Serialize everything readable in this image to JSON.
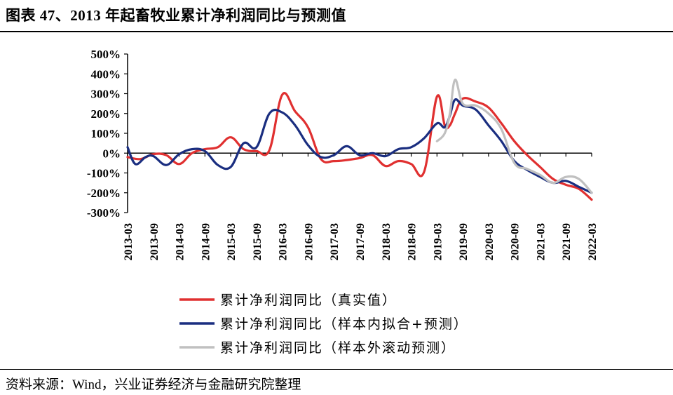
{
  "header": {
    "title": "图表 47、2013 年起畜牧业累计净利润同比与预测值"
  },
  "footer": {
    "source": "资料来源：Wind，兴业证券经济与金融研究院整理"
  },
  "chart_data": {
    "type": "line",
    "title": "",
    "xlabel": "",
    "ylabel": "",
    "ylim": [
      -300,
      500
    ],
    "yticks": [
      "500%",
      "400%",
      "300%",
      "200%",
      "100%",
      "0%",
      "-100%",
      "-200%",
      "-300%"
    ],
    "xticks": [
      "2013-03",
      "2013-09",
      "2014-03",
      "2014-09",
      "2015-03",
      "2015-09",
      "2016-03",
      "2016-09",
      "2017-03",
      "2017-09",
      "2018-03",
      "2018-09",
      "2019-03",
      "2019-09",
      "2020-03",
      "2020-09",
      "2021-03",
      "2021-09",
      "2022-03"
    ],
    "x_unit": "year (decimal)",
    "y_unit": "%",
    "legend_position": "bottom",
    "grid": false,
    "series": [
      {
        "name": "累计净利润同比（真实值）",
        "color": "#e03030",
        "x": [
          2013.25,
          2013.5,
          2013.75,
          2014.0,
          2014.25,
          2014.5,
          2014.75,
          2015.0,
          2015.25,
          2015.5,
          2015.75,
          2016.0,
          2016.25,
          2016.5,
          2016.75,
          2017.0,
          2017.25,
          2017.5,
          2017.75,
          2018.0,
          2018.25,
          2018.5,
          2018.75,
          2019.0,
          2019.25,
          2019.4,
          2019.5,
          2019.6,
          2019.75,
          2020.0,
          2020.25,
          2020.5,
          2020.75,
          2021.0,
          2021.25,
          2021.5,
          2021.75,
          2022.0,
          2022.25
        ],
        "y": [
          -20,
          -30,
          -5,
          -10,
          -55,
          0,
          20,
          30,
          80,
          20,
          10,
          15,
          295,
          210,
          130,
          -30,
          -40,
          -35,
          -25,
          -10,
          -65,
          -40,
          -55,
          -95,
          285,
          140,
          140,
          200,
          275,
          260,
          230,
          150,
          60,
          -10,
          -70,
          -130,
          -160,
          -180,
          -235
        ]
      },
      {
        "name": "累计净利润同比（样本内拟合+预测）",
        "color": "#1a2e80",
        "x": [
          2013.25,
          2013.4,
          2013.6,
          2013.75,
          2014.0,
          2014.25,
          2014.5,
          2014.75,
          2015.0,
          2015.25,
          2015.5,
          2015.75,
          2016.0,
          2016.25,
          2016.5,
          2016.75,
          2017.0,
          2017.25,
          2017.5,
          2017.75,
          2018.0,
          2018.25,
          2018.5,
          2018.75,
          2019.0,
          2019.25,
          2019.4,
          2019.5,
          2019.6,
          2019.75,
          2020.0,
          2020.25,
          2020.5,
          2020.75,
          2021.0,
          2021.25,
          2021.5,
          2021.75,
          2022.0,
          2022.25
        ],
        "y": [
          30,
          -55,
          -20,
          -15,
          -60,
          -5,
          20,
          10,
          -60,
          -70,
          50,
          30,
          200,
          205,
          140,
          40,
          -20,
          -10,
          35,
          -10,
          0,
          -15,
          20,
          30,
          75,
          150,
          130,
          190,
          270,
          240,
          220,
          140,
          60,
          -40,
          -85,
          -120,
          -150,
          -140,
          -170,
          -200
        ]
      },
      {
        "name": "累计净利润同比（样本外滚动预测）",
        "color": "#c0c0c0",
        "x": [
          2019.25,
          2019.4,
          2019.5,
          2019.6,
          2019.75,
          2020.0,
          2020.25,
          2020.5,
          2020.75,
          2021.0,
          2021.25,
          2021.5,
          2021.75,
          2022.0,
          2022.25
        ],
        "y": [
          60,
          100,
          200,
          370,
          250,
          240,
          200,
          120,
          -50,
          -80,
          -110,
          -150,
          -120,
          -130,
          -200
        ]
      }
    ]
  }
}
